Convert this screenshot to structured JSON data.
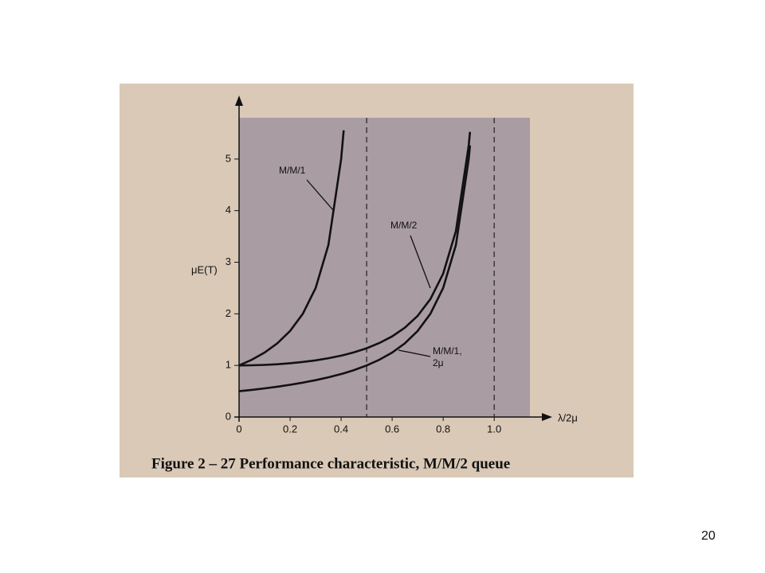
{
  "chart_data": {
    "type": "line",
    "caption": "Figure 2 – 27  Performance characteristic, M/M/2 queue",
    "xlabel": "λ/2μ",
    "ylabel": "μE(T)",
    "x": [
      0,
      0.05,
      0.1,
      0.15,
      0.2,
      0.25,
      0.3,
      0.35,
      0.4,
      0.41,
      0.45,
      0.5,
      0.55,
      0.6,
      0.65,
      0.7,
      0.75,
      0.8,
      0.85,
      0.9,
      0.905
    ],
    "series": [
      {
        "name": "M/M/1",
        "color": "#111111",
        "values": [
          1,
          1.111,
          1.25,
          1.429,
          1.667,
          2,
          2.5,
          3.333,
          5,
          5.556,
          null,
          null,
          null,
          null,
          null,
          null,
          null,
          null,
          null,
          null,
          null
        ]
      },
      {
        "name": "M/M/2",
        "color": "#111111",
        "values": [
          1,
          1.003,
          1.01,
          1.023,
          1.042,
          1.067,
          1.099,
          1.14,
          1.19,
          1.202,
          1.254,
          1.333,
          1.434,
          1.563,
          1.732,
          1.961,
          2.286,
          2.778,
          3.604,
          5.263,
          5.526
        ]
      },
      {
        "name": "M/M/1, 2μ",
        "color": "#111111",
        "values": [
          0.5,
          0.526,
          0.556,
          0.588,
          0.625,
          0.667,
          0.714,
          0.769,
          0.833,
          0.847,
          0.909,
          1,
          1.111,
          1.25,
          1.429,
          1.667,
          2,
          2.5,
          3.333,
          5,
          5.263
        ]
      }
    ],
    "xlim": [
      0,
      1.14
    ],
    "ylim": [
      0,
      5.8
    ],
    "xticks": [
      0,
      0.2,
      0.4,
      0.6,
      0.8,
      {
        "value": 1,
        "label": "1.0"
      }
    ],
    "yticks": [
      0,
      1,
      2,
      3,
      4,
      5
    ],
    "reference_lines_x": [
      0.5,
      1
    ]
  },
  "slide_number": "20"
}
